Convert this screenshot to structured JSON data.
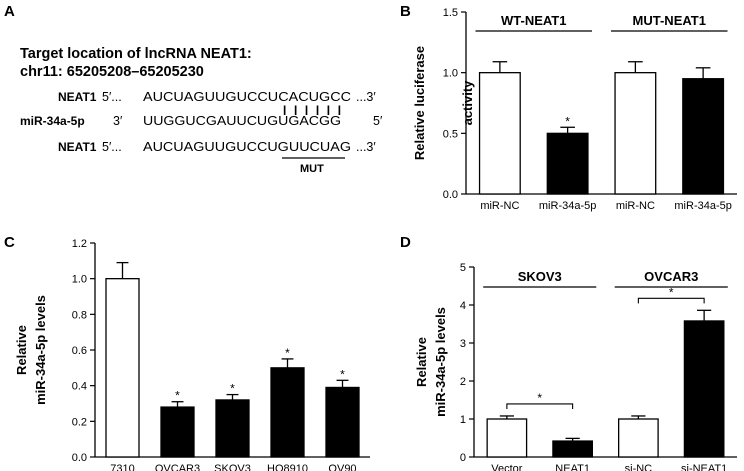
{
  "panel_a": {
    "letter": "A",
    "title_line1": "Target location of lncRNA NEAT1:",
    "title_line2": "chr11: 65205208–65205230",
    "rows": [
      {
        "label": "NEAT1",
        "prefix": "5′...",
        "seq": "AUCUAGUUGUCCUCACUGCC",
        "suffix": "...3′"
      },
      {
        "label": "miR-34a-5p",
        "prefix": "3′",
        "seq": "UUGGUCGAUUCUGUGACGG",
        "suffix": "5′"
      },
      {
        "label": "NEAT1",
        "prefix": "5′...",
        "seq": "AUCUAGUUGUCCUGUUCUAG",
        "suffix": "...3′"
      }
    ],
    "pairing": "| | | | | |",
    "mut_label": "MUT"
  },
  "chart_data": [
    {
      "panel": "B",
      "type": "bar",
      "ylabel": "Relative luciferase activity",
      "ylabel_lines": [
        "Relative luciferase",
        "activity"
      ],
      "ylim": [
        0,
        1.5
      ],
      "yticks": [
        "0.0",
        "0.5",
        "1.0",
        "1.5"
      ],
      "categories": [
        "miR-NC",
        "miR-34a-5p",
        "miR-NC",
        "miR-34a-5p"
      ],
      "values": [
        1.0,
        0.5,
        1.0,
        0.95
      ],
      "errors": [
        0.09,
        0.05,
        0.09,
        0.09
      ],
      "fills": [
        "#ffffff",
        "#000000",
        "#ffffff",
        "#000000"
      ],
      "significance": [
        "",
        "*",
        "",
        ""
      ],
      "groups": [
        {
          "label": "WT-NEAT1",
          "from": 0,
          "to": 1
        },
        {
          "label": "MUT-NEAT1",
          "from": 2,
          "to": 3
        }
      ]
    },
    {
      "panel": "C",
      "type": "bar",
      "ylabel": "Relative miR-34a-5p levels",
      "ylabel_lines": [
        "Relative",
        "miR-34a-5p levels"
      ],
      "ylim": [
        0,
        1.2
      ],
      "yticks": [
        "0.0",
        "0.2",
        "0.4",
        "0.6",
        "0.8",
        "1.0",
        "1.2"
      ],
      "categories": [
        "7310",
        "OVCAR3",
        "SKOV3",
        "HO8910",
        "OV90"
      ],
      "values": [
        1.0,
        0.28,
        0.32,
        0.5,
        0.39
      ],
      "errors": [
        0.09,
        0.03,
        0.03,
        0.05,
        0.04
      ],
      "fills": [
        "#ffffff",
        "#000000",
        "#000000",
        "#000000",
        "#000000"
      ],
      "significance": [
        "",
        "*",
        "*",
        "*",
        "*"
      ]
    },
    {
      "panel": "D",
      "type": "bar",
      "ylabel": "Relative miR-34a-5p levels",
      "ylabel_lines": [
        "Relative",
        "miR-34a-5p levels"
      ],
      "ylim": [
        0,
        5
      ],
      "yticks": [
        "0",
        "1",
        "2",
        "3",
        "4",
        "5"
      ],
      "categories": [
        "Vector",
        "NEAT1",
        "si-NC",
        "si-NEAT1"
      ],
      "values": [
        1.0,
        0.42,
        1.0,
        3.58
      ],
      "errors": [
        0.08,
        0.07,
        0.08,
        0.28
      ],
      "fills": [
        "#ffffff",
        "#000000",
        "#ffffff",
        "#000000"
      ],
      "groups": [
        {
          "label": "SKOV3",
          "from": 0,
          "to": 1
        },
        {
          "label": "OVCAR3",
          "from": 2,
          "to": 3
        }
      ],
      "comparisons": [
        {
          "from": 0,
          "to": 1,
          "label": "*"
        },
        {
          "from": 2,
          "to": 3,
          "label": "*"
        }
      ]
    }
  ]
}
